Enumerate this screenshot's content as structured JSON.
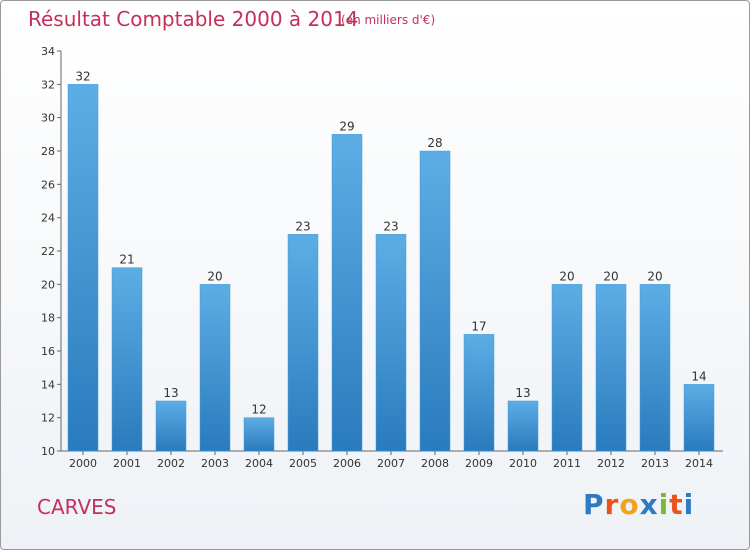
{
  "header": {
    "title": "Résultat Comptable 2000 à 2014",
    "subtitle": "(en milliers d'€)"
  },
  "commune": "CARVES",
  "logo": {
    "text": "Proxiti",
    "letters": [
      "P",
      "r",
      "o",
      "x",
      "i",
      "t",
      "i"
    ],
    "colors": [
      "#2e7bc4",
      "#e8541c",
      "#f2a31b",
      "#2e7bc4",
      "#7bb83a",
      "#e8541c",
      "#2e7bc4"
    ]
  },
  "colors": {
    "title": "#c4305a",
    "bar_top": "#5dade5",
    "bar_bottom": "#2a7bbd",
    "axis": "#666666"
  },
  "chart_data": {
    "type": "bar",
    "title": "Résultat Comptable 2000 à 2014",
    "subtitle": "(en milliers d'€)",
    "xlabel": "",
    "ylabel": "",
    "categories": [
      "2000",
      "2001",
      "2002",
      "2003",
      "2004",
      "2005",
      "2006",
      "2007",
      "2008",
      "2009",
      "2010",
      "2011",
      "2012",
      "2013",
      "2014"
    ],
    "values": [
      32,
      21,
      13,
      20,
      12,
      23,
      29,
      23,
      28,
      17,
      13,
      20,
      20,
      20,
      14
    ],
    "ylim": [
      10,
      34
    ],
    "yticks": [
      10,
      12,
      14,
      16,
      18,
      20,
      22,
      24,
      26,
      28,
      30,
      32,
      34
    ],
    "grid": false,
    "legend": "none"
  }
}
